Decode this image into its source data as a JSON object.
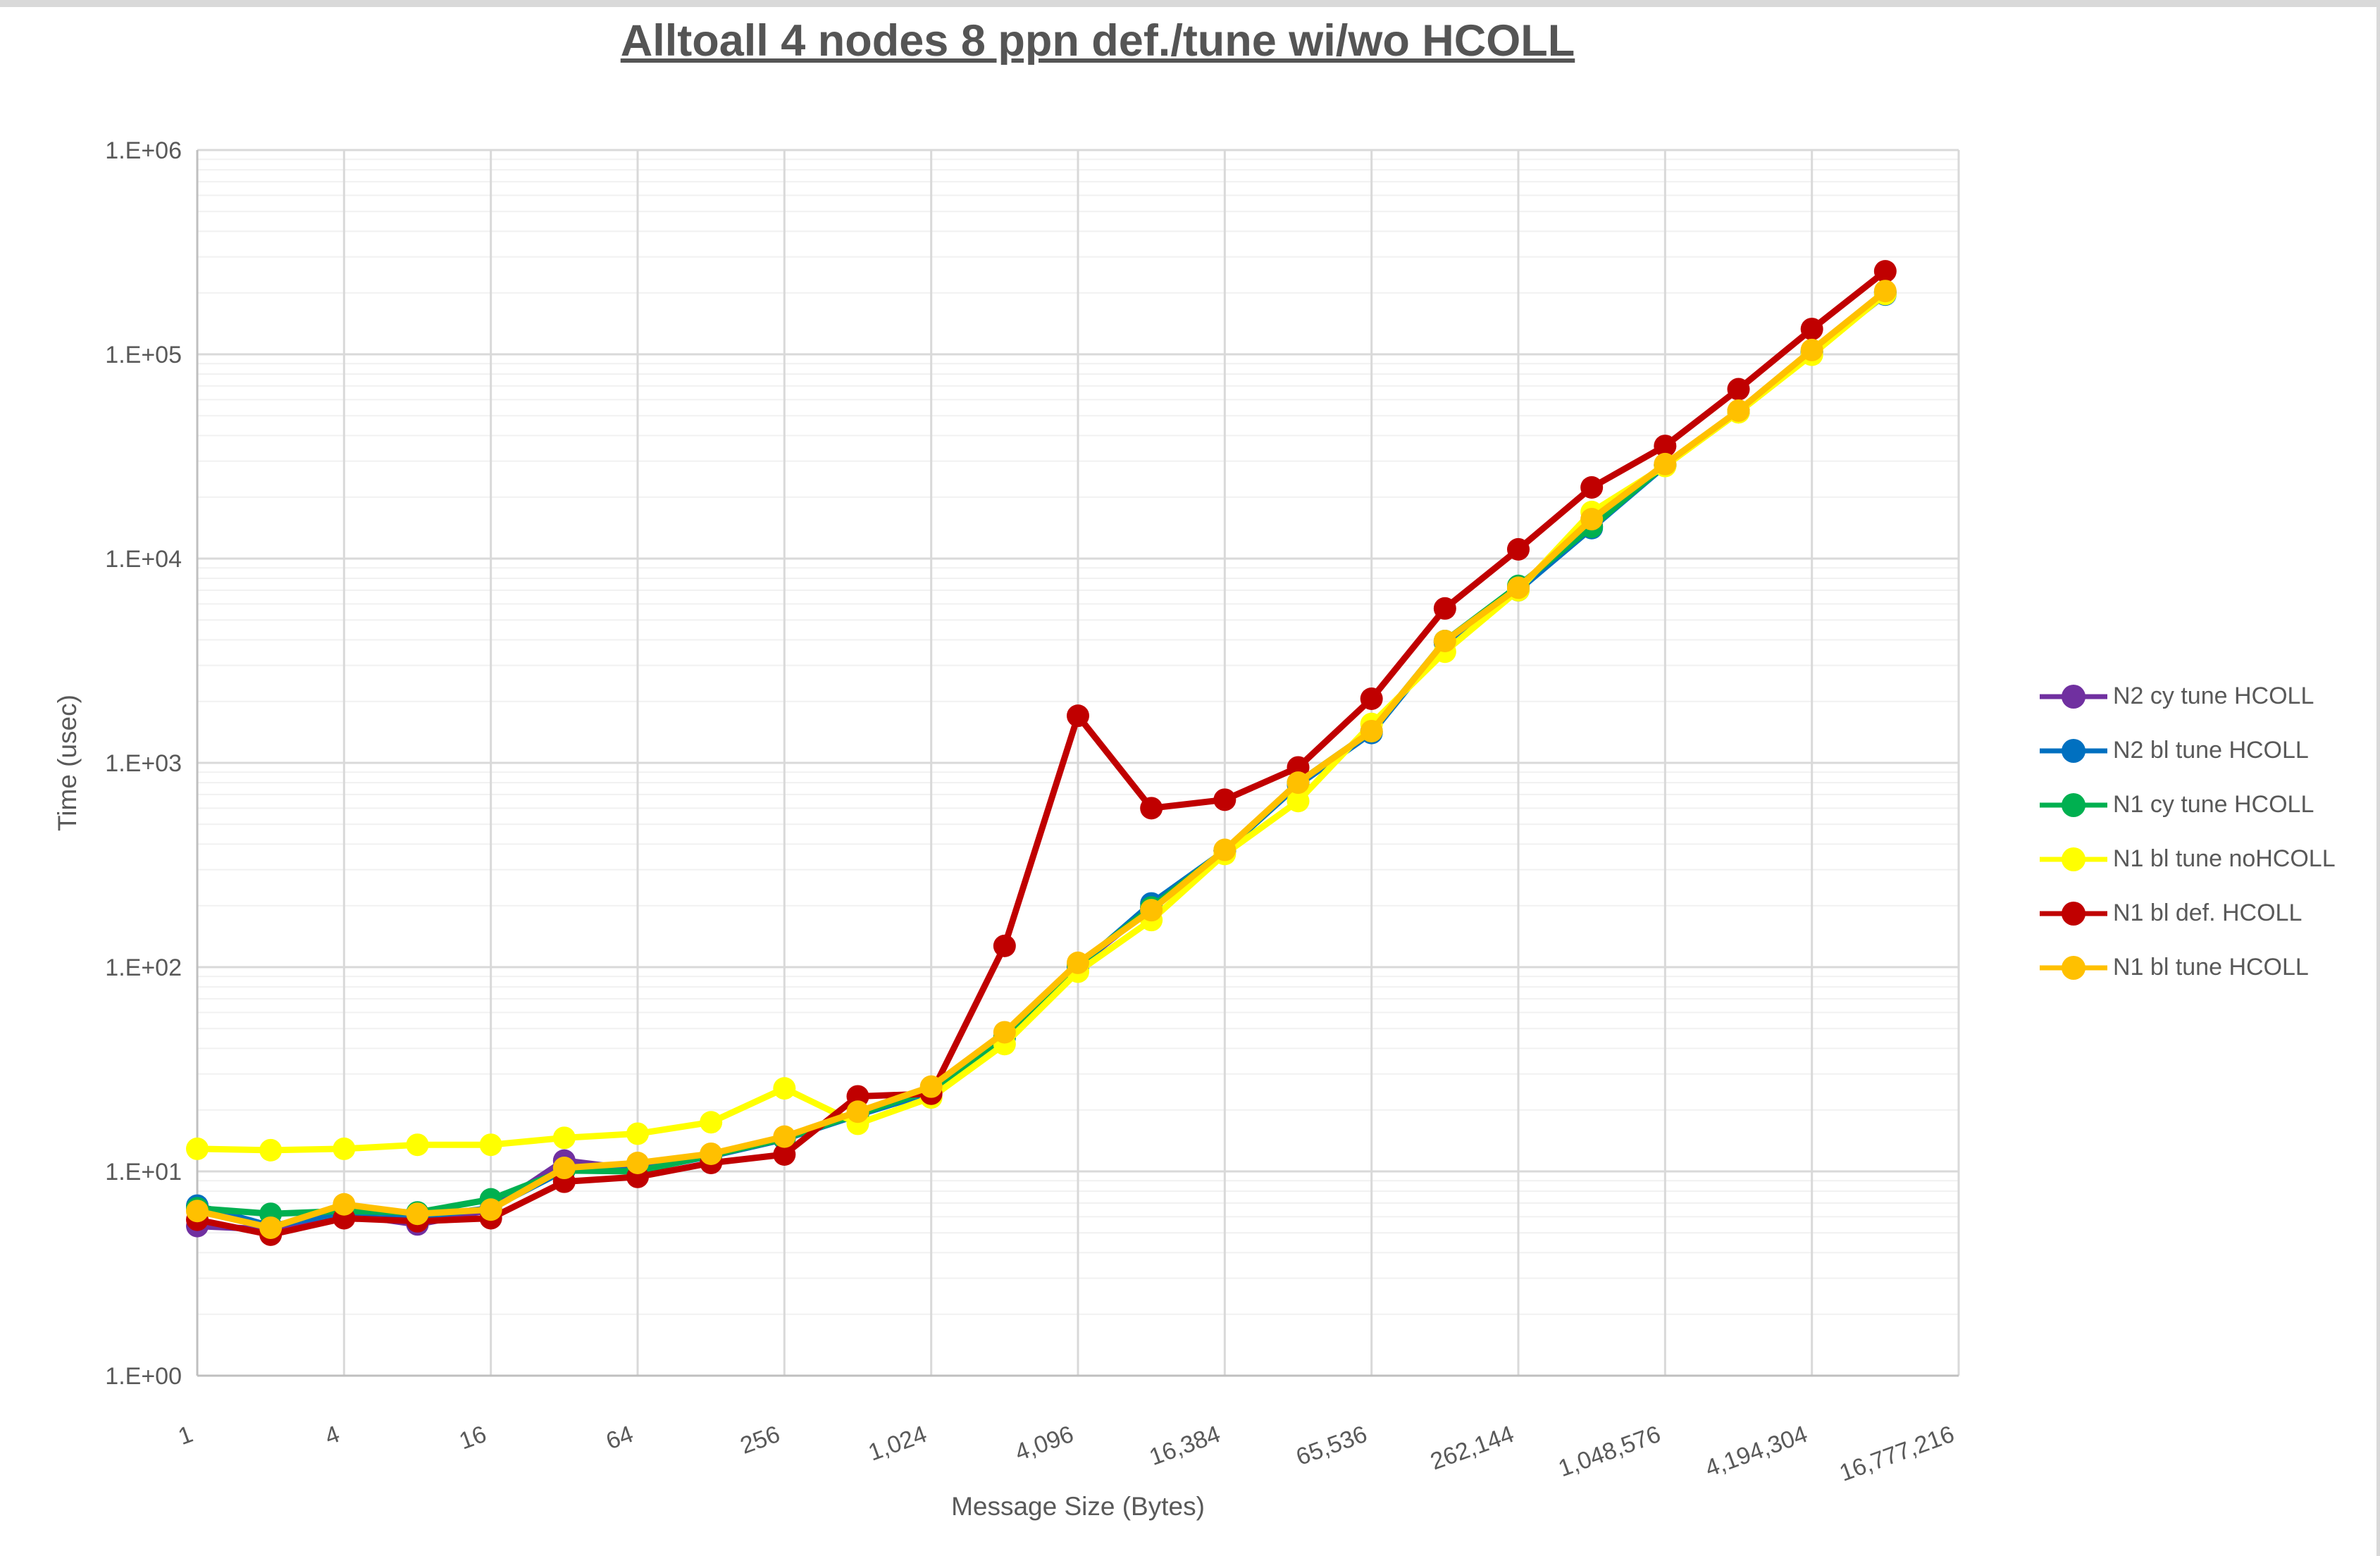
{
  "window": {
    "top_strip_color": "#d9d9d9",
    "background_color": "#ffffff"
  },
  "chart_data": {
    "type": "line",
    "title": "Alltoall 4 nodes 8 ppn def./tune wi/wo HCOLL",
    "xlabel": "Message Size (Bytes)",
    "ylabel": "Time (usec)",
    "x_scale": "log2",
    "y_scale": "log10",
    "xlim": [
      1,
      16777216
    ],
    "ylim": [
      1,
      1000000
    ],
    "grid": "on",
    "legend_position": "right",
    "text_color": "#595959",
    "major_grid_color": "#d9d9d9",
    "minor_grid_color": "#f1f1f1",
    "axis_line_color": "#bfbfbf",
    "y_tick_labels": [
      "1.E+00",
      "1.E+01",
      "1.E+02",
      "1.E+03",
      "1.E+04",
      "1.E+05",
      "1.E+06"
    ],
    "x_tick_labels": [
      "1",
      "4",
      "16",
      "64",
      "256",
      "1,024",
      "4,096",
      "16,384",
      "65,536",
      "262,144",
      "1,048,576",
      "4,194,304",
      "16,777,216"
    ],
    "categories": [
      1,
      2,
      4,
      8,
      16,
      32,
      64,
      128,
      256,
      512,
      1024,
      2048,
      4096,
      8192,
      16384,
      32768,
      65536,
      131072,
      262144,
      524288,
      1048576,
      2097152,
      4194304,
      8388608
    ],
    "series": [
      {
        "name": "N2 cy tune HCOLL",
        "color": "#7030A0",
        "values": [
          5.4,
          5.2,
          6.2,
          5.5,
          6.5,
          11.3,
          10.2,
          11.9,
          14.4,
          19.0,
          24.5,
          45.5,
          101,
          196,
          370,
          790,
          1415,
          3900,
          7100,
          14400,
          28700,
          52400,
          102500,
          200500
        ]
      },
      {
        "name": "N2 bl tune HCOLL",
        "color": "#0070C0",
        "values": [
          6.8,
          5.4,
          6.3,
          6.0,
          6.6,
          10.1,
          10.1,
          11.9,
          14.4,
          18.9,
          24.4,
          45.0,
          100,
          205,
          371,
          780,
          1400,
          3880,
          7000,
          14100,
          28500,
          52100,
          101800,
          196000
        ]
      },
      {
        "name": "N1 cy tune HCOLL",
        "color": "#00B050",
        "values": [
          6.6,
          6.2,
          6.4,
          6.3,
          7.3,
          10.1,
          10.0,
          12.0,
          14.5,
          19.1,
          25.0,
          46.0,
          103,
          196,
          373,
          800,
          1430,
          3950,
          7350,
          14300,
          28800,
          52800,
          103500,
          202000
        ]
      },
      {
        "name": "N1 bl tune noHCOLL",
        "color": "#FFFF00",
        "values": [
          12.9,
          12.7,
          12.9,
          13.5,
          13.5,
          14.6,
          15.3,
          17.4,
          25.5,
          17.1,
          23.0,
          42.0,
          95,
          170,
          358,
          650,
          1550,
          3500,
          7000,
          16900,
          28400,
          52000,
          99500,
          197500
        ]
      },
      {
        "name": "N1 bl def. HCOLL",
        "color": "#C00000",
        "values": [
          5.8,
          4.9,
          5.9,
          5.7,
          5.9,
          8.9,
          9.4,
          11.0,
          12.1,
          23.3,
          24.0,
          127,
          1700,
          600,
          660,
          950,
          2060,
          5700,
          11100,
          22300,
          35600,
          67500,
          133000,
          255000
        ]
      },
      {
        "name": "N1 bl tune HCOLL",
        "color": "#FFC000",
        "values": [
          6.4,
          5.3,
          6.9,
          6.2,
          6.5,
          10.4,
          11.0,
          12.2,
          14.8,
          19.6,
          26.0,
          48.0,
          105,
          190,
          375,
          800,
          1430,
          3950,
          7200,
          15600,
          29000,
          53000,
          105000,
          204000
        ]
      }
    ]
  }
}
